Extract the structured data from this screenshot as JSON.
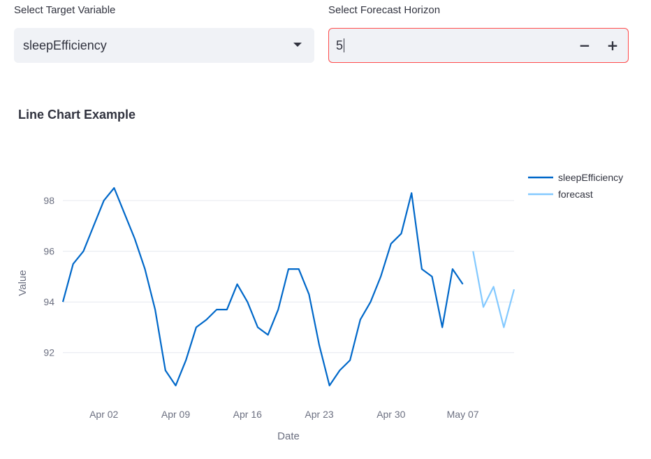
{
  "controls": {
    "target_label": "Select Target Variable",
    "target_value": "sleepEfficiency",
    "horizon_label": "Select Forecast Horizon",
    "horizon_value": "5",
    "minus_label": "−",
    "plus_label": "+"
  },
  "chart_title": "Line Chart Example",
  "chart_data": {
    "type": "line",
    "title": "Line Chart Example",
    "xlabel": "Date",
    "ylabel": "Value",
    "y_ticks": [
      92,
      94,
      96,
      98
    ],
    "x_ticks": [
      "Apr 02",
      "Apr 09",
      "Apr 16",
      "Apr 23",
      "Apr 30",
      "May 07"
    ],
    "x_tick_dates": [
      "2024-04-02",
      "2024-04-09",
      "2024-04-16",
      "2024-04-23",
      "2024-04-30",
      "2024-05-07"
    ],
    "xlim": [
      "2024-03-29",
      "2024-05-12"
    ],
    "ylim": [
      90.2,
      99.3
    ],
    "grid": true,
    "legend": "top-right",
    "series": [
      {
        "name": "sleepEfficiency",
        "color": "#0068c9",
        "x": [
          "2024-03-29",
          "2024-03-30",
          "2024-03-31",
          "2024-04-01",
          "2024-04-02",
          "2024-04-03",
          "2024-04-04",
          "2024-04-05",
          "2024-04-06",
          "2024-04-07",
          "2024-04-08",
          "2024-04-09",
          "2024-04-10",
          "2024-04-11",
          "2024-04-12",
          "2024-04-13",
          "2024-04-14",
          "2024-04-15",
          "2024-04-16",
          "2024-04-17",
          "2024-04-18",
          "2024-04-19",
          "2024-04-20",
          "2024-04-21",
          "2024-04-22",
          "2024-04-23",
          "2024-04-24",
          "2024-04-25",
          "2024-04-26",
          "2024-04-27",
          "2024-04-28",
          "2024-04-29",
          "2024-04-30",
          "2024-05-01",
          "2024-05-02",
          "2024-05-03",
          "2024-05-04",
          "2024-05-05",
          "2024-05-06",
          "2024-05-07"
        ],
        "values": [
          94.0,
          95.5,
          96.0,
          97.0,
          98.0,
          98.5,
          97.5,
          96.5,
          95.3,
          93.7,
          91.3,
          90.7,
          91.7,
          93.0,
          93.3,
          93.7,
          93.7,
          94.7,
          94.0,
          93.0,
          92.7,
          93.7,
          95.3,
          95.3,
          94.3,
          92.3,
          90.7,
          91.3,
          91.7,
          93.3,
          94.0,
          95.0,
          96.3,
          96.7,
          98.3,
          95.3,
          95.0,
          93.0,
          95.3,
          94.7
        ]
      },
      {
        "name": "forecast",
        "color": "#83c9ff",
        "x": [
          "2024-05-08",
          "2024-05-09",
          "2024-05-10",
          "2024-05-11",
          "2024-05-12"
        ],
        "values": [
          96.0,
          93.8,
          94.6,
          93.0,
          94.5
        ]
      }
    ]
  }
}
